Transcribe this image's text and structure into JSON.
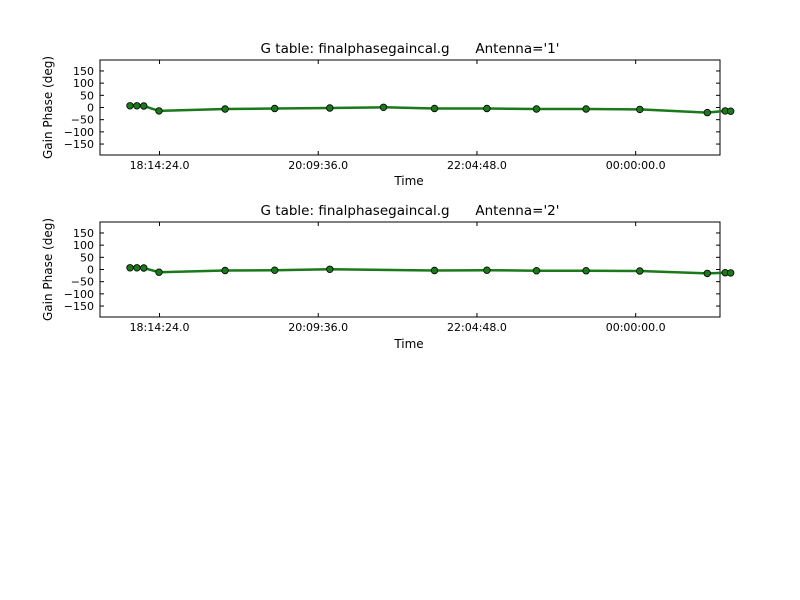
{
  "chart_data": [
    {
      "type": "line",
      "title": "G table: finalphasegaincal.g      Antenna='1'",
      "xlabel": "Time",
      "ylabel": "Gain Phase (deg)",
      "ylim": [
        -195,
        195
      ],
      "yticks": [
        -150,
        -100,
        -50,
        0,
        50,
        100,
        150
      ],
      "xlim": [
        "17:31:12",
        "25:01:12"
      ],
      "xticks": [
        "18:14:24.0",
        "20:09:36.0",
        "22:04:48.0",
        "00:00:00.0"
      ],
      "grid": false,
      "line_color": "#1a7a1a",
      "marker_color": "#1a7a1a",
      "series": [
        {
          "x": [
            "17:53:00",
            "17:58:00",
            "18:03:00",
            "18:14:00",
            "19:02:00",
            "19:38:00",
            "20:18:00",
            "20:57:00",
            "21:34:00",
            "22:12:00",
            "22:48:00",
            "23:24:00",
            "24:03:00",
            "24:52:00",
            "25:05:00",
            "25:09:00"
          ],
          "y": [
            7,
            7,
            6,
            -14,
            -6,
            -4,
            -2,
            1,
            -4,
            -4,
            -6,
            -6,
            -8,
            -21,
            -14,
            -15
          ]
        }
      ]
    },
    {
      "type": "line",
      "title": "G table: finalphasegaincal.g      Antenna='2'",
      "xlabel": "Time",
      "ylabel": "Gain Phase (deg)",
      "ylim": [
        -195,
        195
      ],
      "yticks": [
        -150,
        -100,
        -50,
        0,
        50,
        100,
        150
      ],
      "xlim": [
        "17:31:12",
        "25:01:12"
      ],
      "xticks": [
        "18:14:24.0",
        "20:09:36.0",
        "22:04:48.0",
        "00:00:00.0"
      ],
      "grid": false,
      "line_color": "#1a7a1a",
      "marker_color": "#1a7a1a",
      "series": [
        {
          "x": [
            "17:53:00",
            "17:58:00",
            "18:03:00",
            "18:14:00",
            "19:02:00",
            "19:38:00",
            "20:18:00",
            "21:34:00",
            "22:12:00",
            "22:48:00",
            "23:24:00",
            "24:03:00",
            "24:52:00",
            "25:05:00",
            "25:09:00"
          ],
          "y": [
            7,
            7,
            6,
            -11,
            -4,
            -3,
            1,
            -4,
            -3,
            -5,
            -5,
            -6,
            -16,
            -13,
            -14
          ]
        }
      ]
    }
  ]
}
